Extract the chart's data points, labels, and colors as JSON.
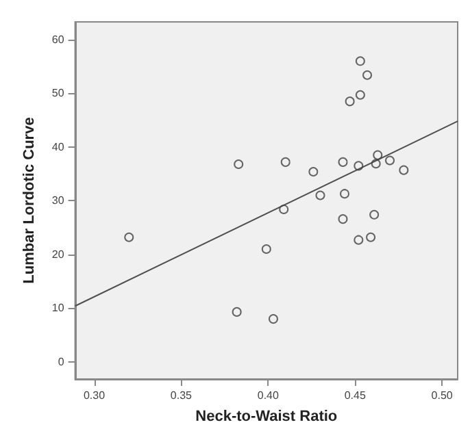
{
  "chart_data": {
    "type": "scatter",
    "xlabel": "Neck-to-Waist Ratio",
    "ylabel": "Lumbar Lordotic Curve",
    "grid": false,
    "xlim": [
      0.289,
      0.509
    ],
    "ylim": [
      -3.2,
      63.3
    ],
    "xticks": [
      {
        "value": 0.3,
        "label": "0.30"
      },
      {
        "value": 0.35,
        "label": "0.35"
      },
      {
        "value": 0.4,
        "label": "0.40"
      },
      {
        "value": 0.45,
        "label": "0.45"
      },
      {
        "value": 0.5,
        "label": "0.50"
      }
    ],
    "yticks": [
      0,
      10,
      20,
      30,
      40,
      50,
      60
    ],
    "series": [
      {
        "marker": "circle",
        "color": "#404040",
        "x": [
          0.453,
          0.457,
          0.447,
          0.453,
          0.383,
          0.41,
          0.426,
          0.443,
          0.452,
          0.463,
          0.462,
          0.47,
          0.478,
          0.43,
          0.444,
          0.409,
          0.32,
          0.443,
          0.461,
          0.399,
          0.452,
          0.459,
          0.382,
          0.403
        ],
        "values": [
          56.0,
          53.4,
          48.5,
          49.7,
          36.8,
          37.2,
          35.4,
          37.2,
          36.5,
          38.5,
          36.9,
          37.5,
          35.7,
          31.0,
          31.3,
          28.4,
          23.2,
          26.6,
          27.4,
          21.0,
          22.7,
          23.2,
          9.3,
          8.0
        ]
      },
      {
        "type": "line",
        "marker": "none",
        "color": "#505050",
        "x": [
          0.289,
          0.509
        ],
        "values": [
          10.4,
          44.8
        ]
      }
    ]
  }
}
